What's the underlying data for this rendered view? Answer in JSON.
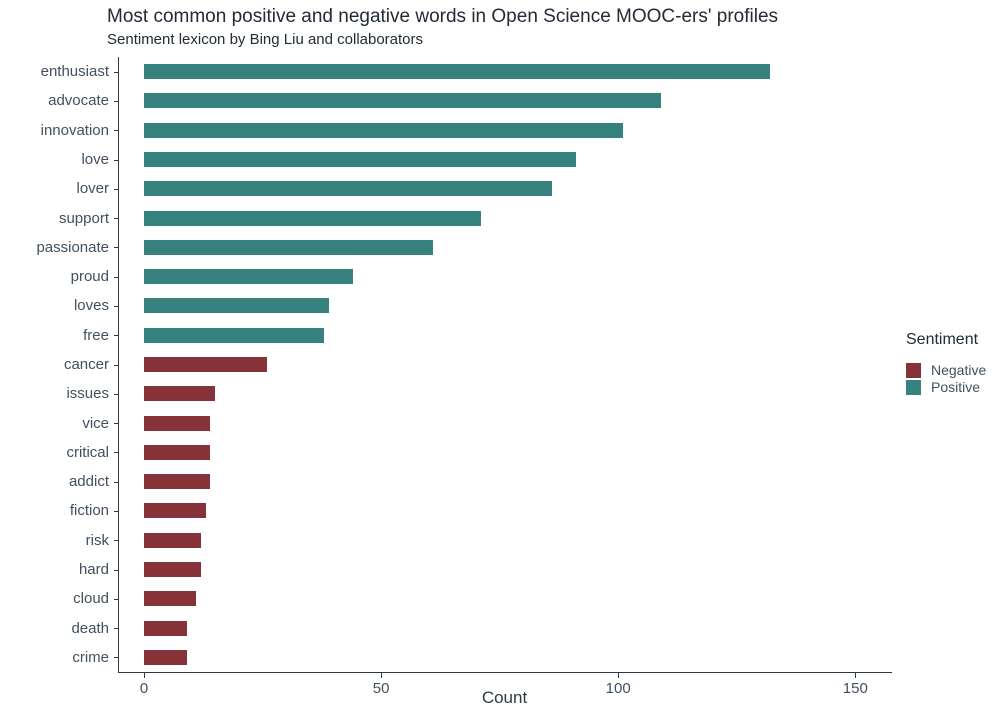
{
  "title": "Most common positive and negative words in Open Science MOOC-ers' profiles",
  "subtitle": "Sentiment lexicon by Bing Liu and collaborators",
  "legend": {
    "title": "Sentiment",
    "entries": [
      {
        "label": "Negative",
        "color": "#853238"
      },
      {
        "label": "Positive",
        "color": "#35827E"
      }
    ]
  },
  "colors": {
    "negative": "#853238",
    "positive": "#35827E",
    "axis_line": "#2E3B47",
    "axis_text": "#42505F",
    "title_text": "#222B36"
  },
  "chart_data": {
    "type": "bar",
    "orientation": "horizontal",
    "title": "Most common positive and negative words in Open Science MOOC-ers' profiles",
    "subtitle": "Sentiment lexicon by Bing Liu and collaborators",
    "xlabel": "Count",
    "ylabel": "",
    "x_ticks": [
      0,
      50,
      100,
      150
    ],
    "xlim": [
      -5,
      158
    ],
    "grid": false,
    "legend_position": "right",
    "legend_title": "Sentiment",
    "categories": [
      "enthusiast",
      "advocate",
      "innovation",
      "love",
      "lover",
      "support",
      "passionate",
      "proud",
      "loves",
      "free",
      "cancer",
      "issues",
      "vice",
      "critical",
      "addict",
      "fiction",
      "risk",
      "hard",
      "cloud",
      "death",
      "crime"
    ],
    "series": [
      {
        "name": "Count",
        "values": [
          132,
          109,
          101,
          91,
          86,
          71,
          61,
          44,
          39,
          38,
          26,
          15,
          14,
          14,
          14,
          13,
          12,
          12,
          11,
          9,
          9
        ]
      }
    ],
    "sentiments": [
      "Positive",
      "Positive",
      "Positive",
      "Positive",
      "Positive",
      "Positive",
      "Positive",
      "Positive",
      "Positive",
      "Positive",
      "Negative",
      "Negative",
      "Negative",
      "Negative",
      "Negative",
      "Negative",
      "Negative",
      "Negative",
      "Negative",
      "Negative",
      "Negative"
    ]
  }
}
